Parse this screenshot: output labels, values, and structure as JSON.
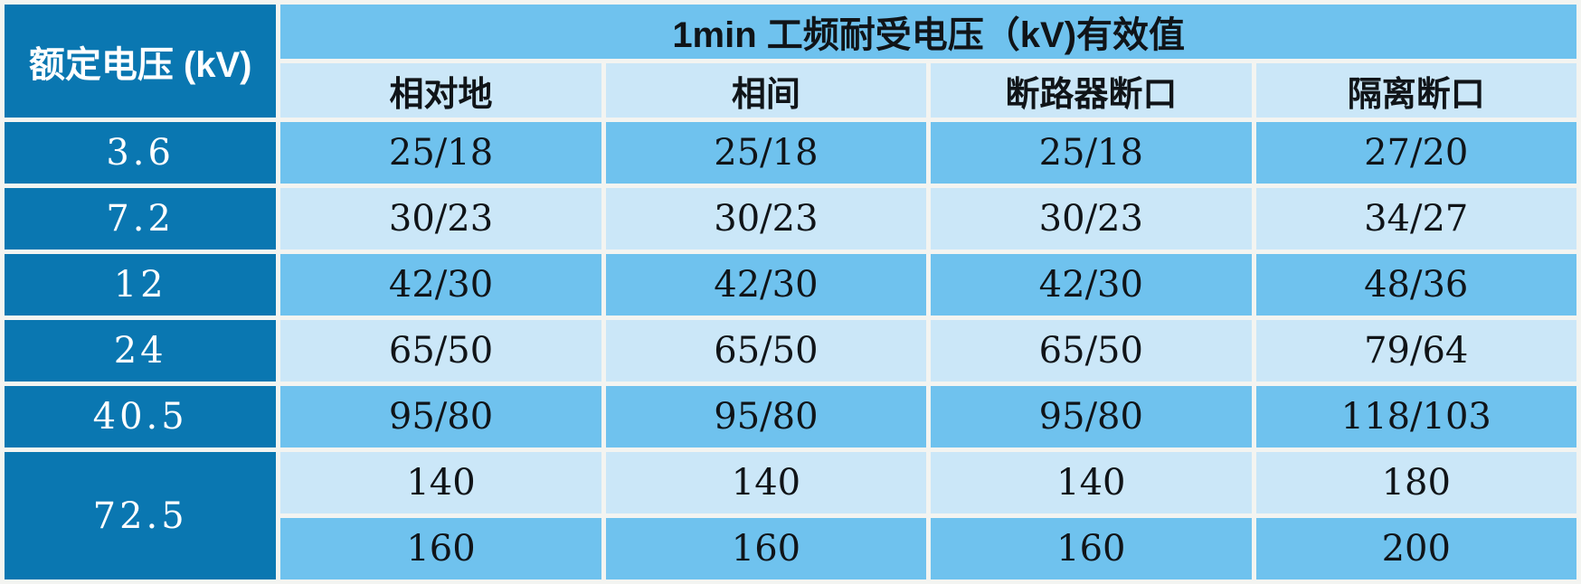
{
  "chart_data": {
    "type": "table",
    "corner_header": "额定电压 (kV)",
    "group_header": "1min 工频耐受电压（kV)有效值",
    "columns": [
      "相对地",
      "相间",
      "断路器断口",
      "隔离断口"
    ],
    "rows": [
      {
        "rated": "3.6",
        "values": [
          "25/18",
          "25/18",
          "25/18",
          "27/20"
        ]
      },
      {
        "rated": "7.2",
        "values": [
          "30/23",
          "30/23",
          "30/23",
          "34/27"
        ]
      },
      {
        "rated": "12",
        "values": [
          "42/30",
          "42/30",
          "42/30",
          "48/36"
        ]
      },
      {
        "rated": "24",
        "values": [
          "65/50",
          "65/50",
          "65/50",
          "79/64"
        ]
      },
      {
        "rated": "40.5",
        "values": [
          "95/80",
          "95/80",
          "95/80",
          "118/103"
        ]
      },
      {
        "rated": "72.5",
        "values": [
          "140",
          "140",
          "140",
          "180"
        ]
      },
      {
        "values": [
          "160",
          "160",
          "160",
          "200"
        ]
      }
    ],
    "layout_hints": {
      "corner_cell_rowspan": 2,
      "group_header_colspan": 4,
      "rated_72_5_rowspan": 2,
      "row_shading_order": [
        "medium",
        "light",
        "medium",
        "light",
        "medium",
        "light",
        "medium"
      ]
    }
  },
  "colors": {
    "dark_blue": "#0a77b1",
    "medium_blue": "#6fc2ee",
    "light_blue": "#cbe7f8",
    "gap": "#f3f4f1",
    "page_bg": "#e9edef",
    "text_dark": "#101418",
    "text_light": "#ffffff"
  }
}
